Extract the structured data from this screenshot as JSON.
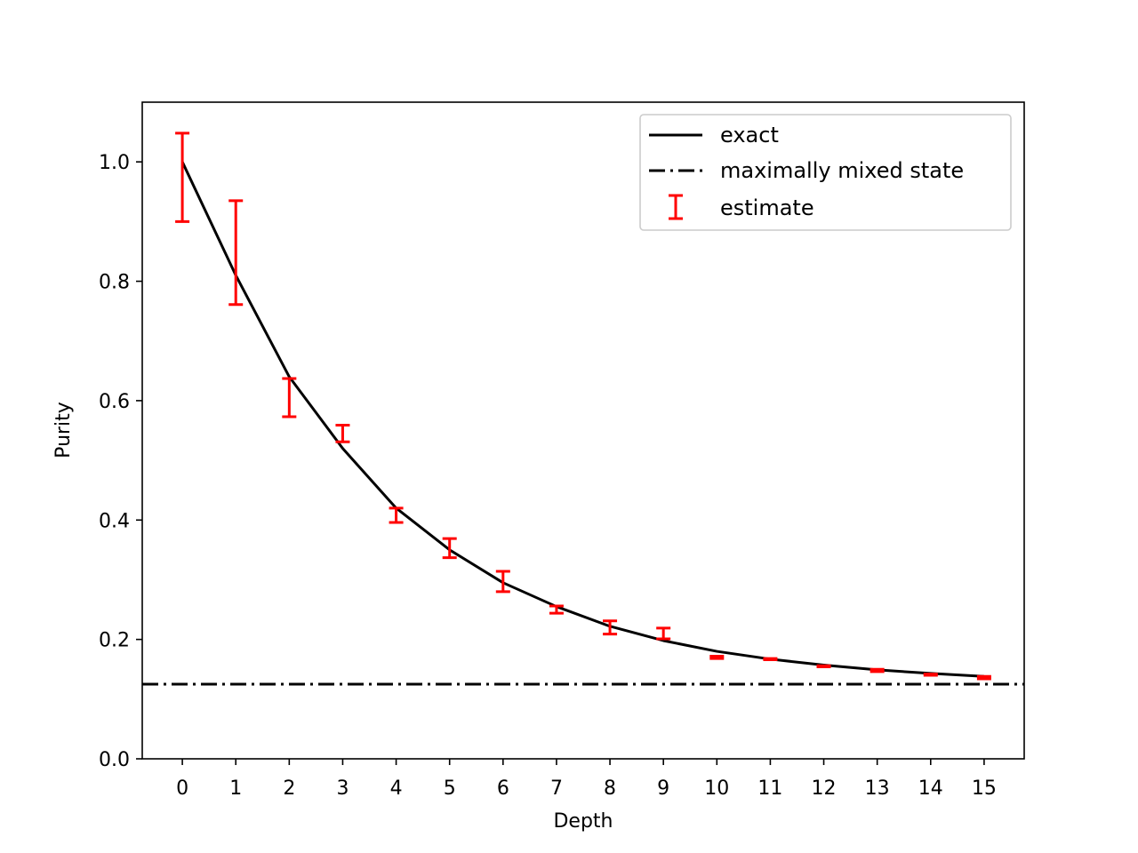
{
  "chart_data": {
    "type": "line",
    "title": "",
    "xlabel": "Depth",
    "ylabel": "Purity",
    "xlim": [
      -0.75,
      15.75
    ],
    "ylim": [
      0.0,
      1.1
    ],
    "xticks": [
      0,
      1,
      2,
      3,
      4,
      5,
      6,
      7,
      8,
      9,
      10,
      11,
      12,
      13,
      14,
      15
    ],
    "yticks": [
      0.0,
      0.2,
      0.4,
      0.6,
      0.8,
      1.0
    ],
    "ytick_labels": [
      "0.0",
      "0.2",
      "0.4",
      "0.6",
      "0.8",
      "1.0"
    ],
    "grid": false,
    "legend_position": "top-right",
    "series": [
      {
        "name": "exact",
        "style": "solid",
        "color": "#000000",
        "x": [
          0,
          1,
          2,
          3,
          4,
          5,
          6,
          7,
          8,
          9,
          10,
          11,
          12,
          13,
          14,
          15
        ],
        "y": [
          1.0,
          0.81,
          0.64,
          0.52,
          0.42,
          0.35,
          0.295,
          0.255,
          0.222,
          0.198,
          0.18,
          0.167,
          0.157,
          0.149,
          0.143,
          0.138
        ]
      },
      {
        "name": "maximally mixed state",
        "style": "dashdot",
        "color": "#000000",
        "y_const": 0.125
      },
      {
        "name": "estimate",
        "style": "errorbar",
        "color": "#ff0000",
        "x": [
          0,
          1,
          2,
          3,
          4,
          5,
          6,
          7,
          8,
          9,
          10,
          11,
          12,
          13,
          14,
          15
        ],
        "y": [
          0.974,
          0.848,
          0.605,
          0.545,
          0.408,
          0.353,
          0.297,
          0.25,
          0.22,
          0.21,
          0.17,
          0.167,
          0.155,
          0.148,
          0.141,
          0.136
        ],
        "yerr": [
          0.074,
          0.087,
          0.032,
          0.014,
          0.012,
          0.016,
          0.017,
          0.006,
          0.011,
          0.009,
          0.002,
          0.001,
          0.001,
          0.002,
          0.001,
          0.002
        ]
      }
    ]
  }
}
